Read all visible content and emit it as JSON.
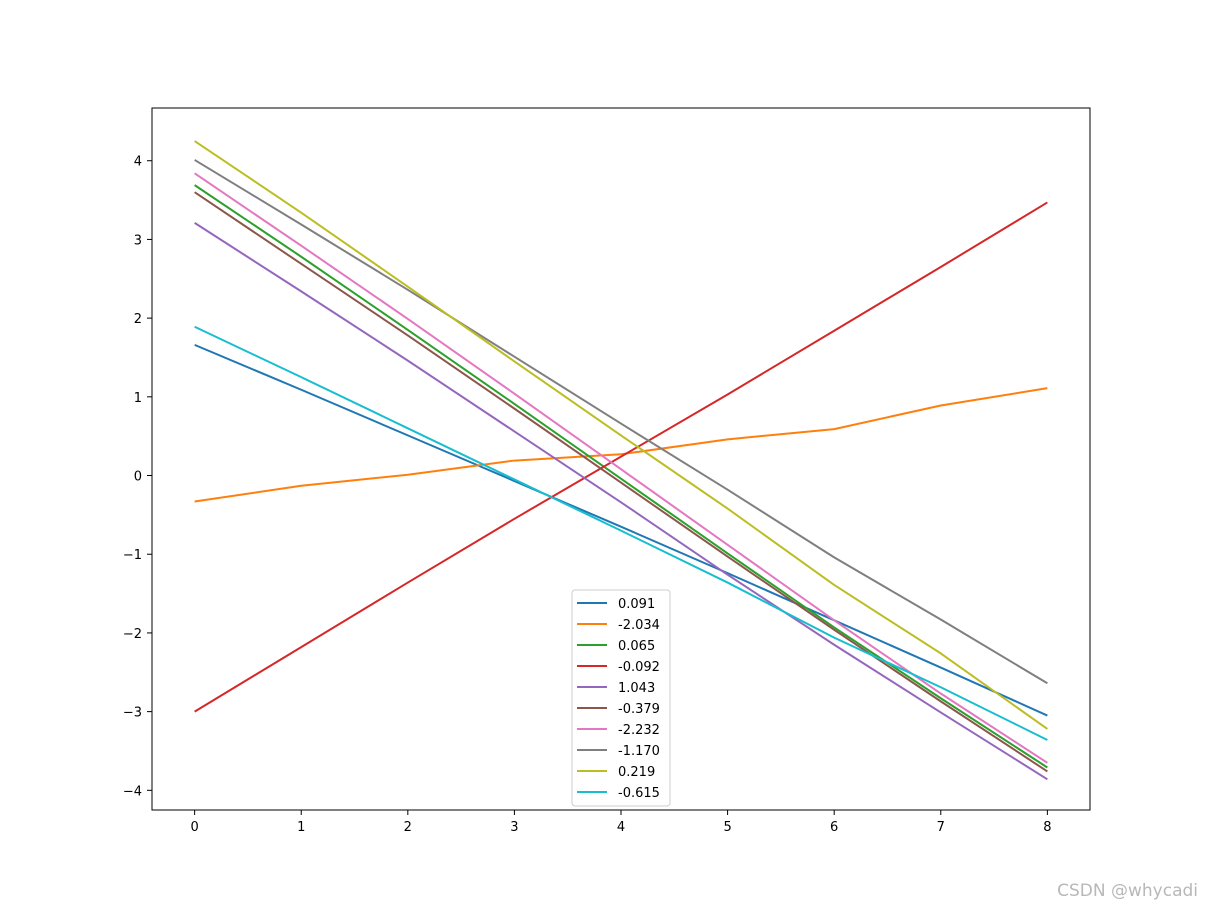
{
  "chart_data": {
    "type": "line",
    "title": "",
    "xlabel": "",
    "ylabel": "",
    "xlim": [
      -0.4,
      8.4
    ],
    "ylim": [
      -4.25,
      4.67
    ],
    "x": [
      0,
      1,
      2,
      3,
      4,
      5,
      6,
      7,
      8
    ],
    "xticks": [
      0,
      1,
      2,
      3,
      4,
      5,
      6,
      7,
      8
    ],
    "yticks": [
      -4,
      -3,
      -2,
      -1,
      0,
      1,
      2,
      3,
      4
    ],
    "grid": false,
    "legend_position": "lower-center",
    "series": [
      {
        "name": "0.091",
        "color": "#1f77b4",
        "values": [
          1.66,
          1.09,
          0.51,
          -0.07,
          -0.65,
          -1.24,
          -1.84,
          -2.44,
          -3.05
        ]
      },
      {
        "name": "-2.034",
        "color": "#ff7f0e",
        "values": [
          -0.33,
          -0.13,
          0.01,
          0.19,
          0.27,
          0.46,
          0.59,
          0.89,
          1.11
        ]
      },
      {
        "name": "0.065",
        "color": "#2ca02c",
        "values": [
          3.69,
          2.78,
          1.85,
          0.91,
          -0.04,
          -0.99,
          -1.93,
          -2.83,
          -3.71
        ]
      },
      {
        "name": "-0.092",
        "color": "#d62728",
        "values": [
          -3.0,
          -2.18,
          -1.36,
          -0.55,
          0.24,
          1.03,
          1.84,
          2.65,
          3.47
        ]
      },
      {
        "name": "1.043",
        "color": "#9467bd",
        "values": [
          3.21,
          2.34,
          1.46,
          0.56,
          -0.34,
          -1.26,
          -2.15,
          -3.01,
          -3.86
        ]
      },
      {
        "name": "-0.379",
        "color": "#8c564b",
        "values": [
          3.6,
          2.69,
          1.78,
          0.85,
          -0.09,
          -1.03,
          -1.96,
          -2.87,
          -3.76
        ]
      },
      {
        "name": "-2.232",
        "color": "#e377c2",
        "values": [
          3.84,
          2.92,
          1.99,
          1.04,
          0.08,
          -0.88,
          -1.84,
          -2.77,
          -3.65
        ]
      },
      {
        "name": "-1.170",
        "color": "#7f7f7f",
        "values": [
          4.01,
          3.19,
          2.36,
          1.51,
          0.66,
          -0.18,
          -1.04,
          -1.83,
          -2.64
        ]
      },
      {
        "name": "0.219",
        "color": "#bcbd22",
        "values": [
          4.25,
          3.34,
          2.4,
          1.45,
          0.51,
          -0.42,
          -1.39,
          -2.26,
          -3.22
        ]
      },
      {
        "name": "-0.615",
        "color": "#17becf",
        "values": [
          1.89,
          1.25,
          0.6,
          -0.05,
          -0.7,
          -1.36,
          -2.06,
          -2.69,
          -3.36
        ]
      }
    ]
  },
  "watermark": "CSDN @whycadi"
}
